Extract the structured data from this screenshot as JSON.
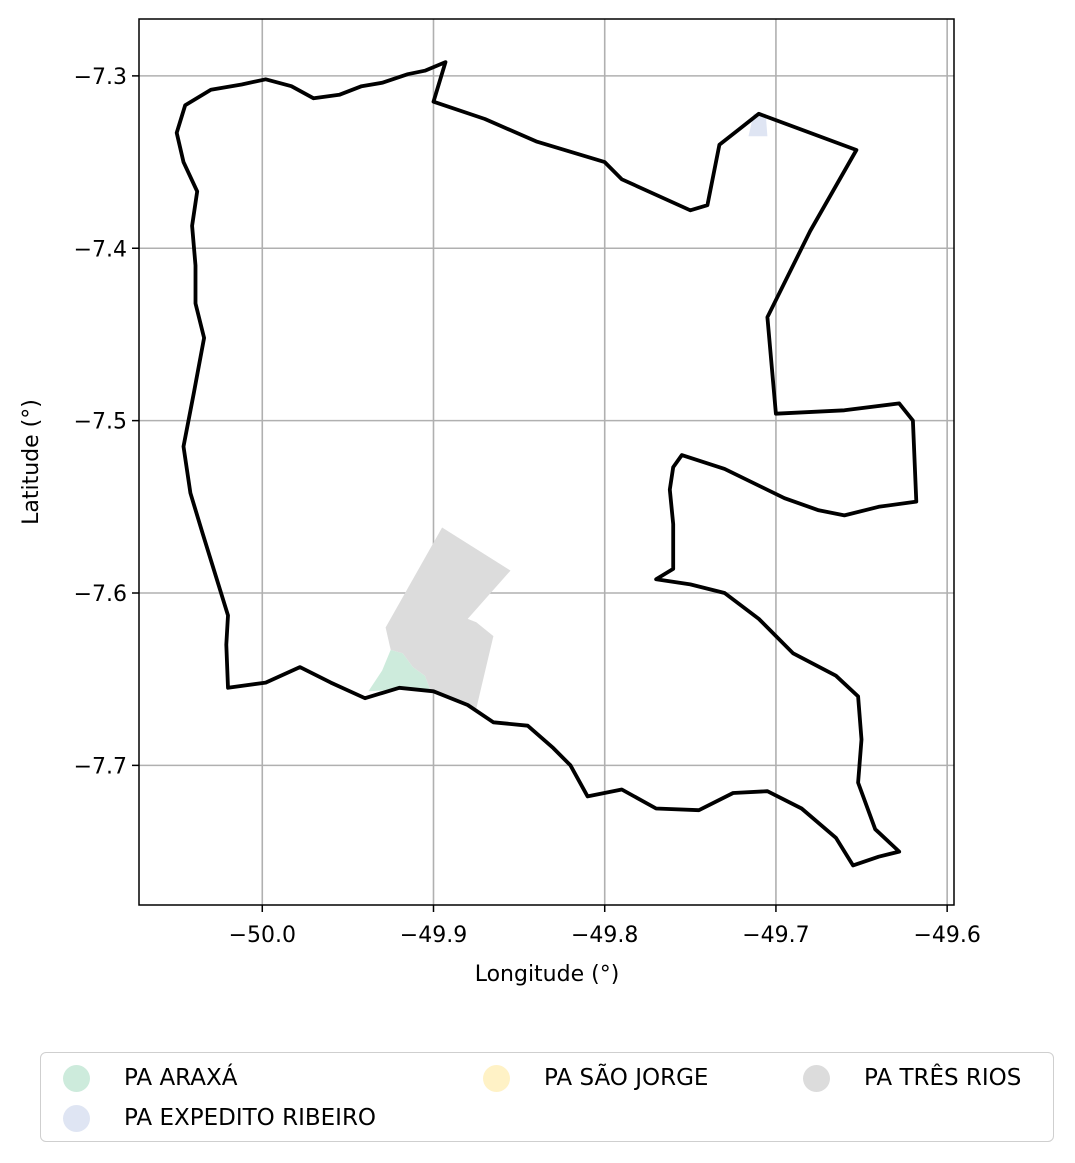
{
  "chart_data": {
    "type": "map",
    "xlabel": "Longitude (°)",
    "ylabel": "Latitude (°)",
    "xlim": [
      -50.072,
      -49.596
    ],
    "ylim": [
      -7.781,
      -7.267
    ],
    "xticks": [
      -50.0,
      -49.9,
      -49.8,
      -49.7,
      -49.6
    ],
    "xtick_labels": [
      "−50.0",
      "−49.9",
      "−49.8",
      "−49.7",
      "−49.6"
    ],
    "yticks": [
      -7.3,
      -7.4,
      -7.5,
      -7.6,
      -7.7
    ],
    "ytick_labels": [
      "−7.3",
      "−7.4",
      "−7.5",
      "−7.6",
      "−7.7"
    ],
    "grid": true,
    "legend_position": "bottom",
    "boundary": {
      "color": "#000000",
      "points": [
        [
          -49.893,
          -7.292
        ],
        [
          -49.905,
          -7.297
        ],
        [
          -49.915,
          -7.299
        ],
        [
          -49.93,
          -7.304
        ],
        [
          -49.942,
          -7.306
        ],
        [
          -49.955,
          -7.311
        ],
        [
          -49.97,
          -7.313
        ],
        [
          -49.983,
          -7.306
        ],
        [
          -49.998,
          -7.302
        ],
        [
          -50.012,
          -7.305
        ],
        [
          -50.03,
          -7.308
        ],
        [
          -50.045,
          -7.317
        ],
        [
          -50.05,
          -7.333
        ],
        [
          -50.046,
          -7.35
        ],
        [
          -50.038,
          -7.367
        ],
        [
          -50.041,
          -7.387
        ],
        [
          -50.039,
          -7.41
        ],
        [
          -50.039,
          -7.432
        ],
        [
          -50.034,
          -7.452
        ],
        [
          -50.04,
          -7.484
        ],
        [
          -50.046,
          -7.515
        ],
        [
          -50.042,
          -7.542
        ],
        [
          -50.035,
          -7.565
        ],
        [
          -50.02,
          -7.613
        ],
        [
          -50.021,
          -7.63
        ],
        [
          -50.02,
          -7.655
        ],
        [
          -49.998,
          -7.652
        ],
        [
          -49.978,
          -7.643
        ],
        [
          -49.96,
          -7.652
        ],
        [
          -49.94,
          -7.661
        ],
        [
          -49.92,
          -7.655
        ],
        [
          -49.9,
          -7.657
        ],
        [
          -49.88,
          -7.665
        ],
        [
          -49.865,
          -7.675
        ],
        [
          -49.845,
          -7.677
        ],
        [
          -49.83,
          -7.69
        ],
        [
          -49.82,
          -7.7
        ],
        [
          -49.81,
          -7.718
        ],
        [
          -49.79,
          -7.714
        ],
        [
          -49.77,
          -7.725
        ],
        [
          -49.745,
          -7.726
        ],
        [
          -49.725,
          -7.716
        ],
        [
          -49.705,
          -7.715
        ],
        [
          -49.685,
          -7.725
        ],
        [
          -49.665,
          -7.742
        ],
        [
          -49.655,
          -7.758
        ],
        [
          -49.64,
          -7.753
        ],
        [
          -49.628,
          -7.75
        ],
        [
          -49.642,
          -7.737
        ],
        [
          -49.652,
          -7.71
        ],
        [
          -49.65,
          -7.685
        ],
        [
          -49.652,
          -7.66
        ],
        [
          -49.665,
          -7.648
        ],
        [
          -49.69,
          -7.635
        ],
        [
          -49.71,
          -7.615
        ],
        [
          -49.73,
          -7.6
        ],
        [
          -49.75,
          -7.595
        ],
        [
          -49.77,
          -7.592
        ],
        [
          -49.76,
          -7.586
        ],
        [
          -49.76,
          -7.56
        ],
        [
          -49.762,
          -7.54
        ],
        [
          -49.76,
          -7.527
        ],
        [
          -49.755,
          -7.52
        ],
        [
          -49.73,
          -7.528
        ],
        [
          -49.695,
          -7.545
        ],
        [
          -49.675,
          -7.552
        ],
        [
          -49.66,
          -7.555
        ],
        [
          -49.64,
          -7.55
        ],
        [
          -49.618,
          -7.547
        ],
        [
          -49.62,
          -7.5
        ],
        [
          -49.628,
          -7.49
        ],
        [
          -49.66,
          -7.494
        ],
        [
          -49.7,
          -7.496
        ],
        [
          -49.705,
          -7.44
        ],
        [
          -49.68,
          -7.39
        ],
        [
          -49.653,
          -7.343
        ],
        [
          -49.71,
          -7.322
        ],
        [
          -49.733,
          -7.34
        ],
        [
          -49.74,
          -7.375
        ],
        [
          -49.75,
          -7.378
        ],
        [
          -49.79,
          -7.36
        ],
        [
          -49.8,
          -7.35
        ],
        [
          -49.84,
          -7.338
        ],
        [
          -49.87,
          -7.325
        ],
        [
          -49.9,
          -7.315
        ],
        [
          -49.893,
          -7.292
        ]
      ]
    },
    "areas": [
      {
        "name": "PA ARAXÁ",
        "color": "#cdebdc",
        "points": [
          [
            -49.938,
            -7.657
          ],
          [
            -49.93,
            -7.645
          ],
          [
            -49.925,
            -7.633
          ],
          [
            -49.918,
            -7.635
          ],
          [
            -49.912,
            -7.643
          ],
          [
            -49.905,
            -7.648
          ],
          [
            -49.902,
            -7.656
          ],
          [
            -49.92,
            -7.656
          ]
        ]
      },
      {
        "name": "PA EXPEDITO RIBEIRO",
        "color": "#dfe5f3",
        "points": [
          [
            -49.716,
            -7.335
          ],
          [
            -49.713,
            -7.322
          ],
          [
            -49.706,
            -7.322
          ],
          [
            -49.705,
            -7.335
          ]
        ]
      },
      {
        "name": "PA SÃO JORGE",
        "color": "#fff2c6",
        "points": []
      },
      {
        "name": "PA TRÊS RIOS",
        "color": "#dcdcdc",
        "points": [
          [
            -49.895,
            -7.562
          ],
          [
            -49.855,
            -7.587
          ],
          [
            -49.88,
            -7.615
          ],
          [
            -49.875,
            -7.617
          ],
          [
            -49.865,
            -7.625
          ],
          [
            -49.875,
            -7.667
          ],
          [
            -49.89,
            -7.66
          ],
          [
            -49.902,
            -7.656
          ],
          [
            -49.905,
            -7.648
          ],
          [
            -49.912,
            -7.643
          ],
          [
            -49.918,
            -7.635
          ],
          [
            -49.925,
            -7.633
          ],
          [
            -49.928,
            -7.62
          ]
        ]
      }
    ],
    "legend": [
      "PA ARAXÁ",
      "PA EXPEDITO RIBEIRO",
      "PA SÃO JORGE",
      "PA TRÊS RIOS"
    ]
  }
}
